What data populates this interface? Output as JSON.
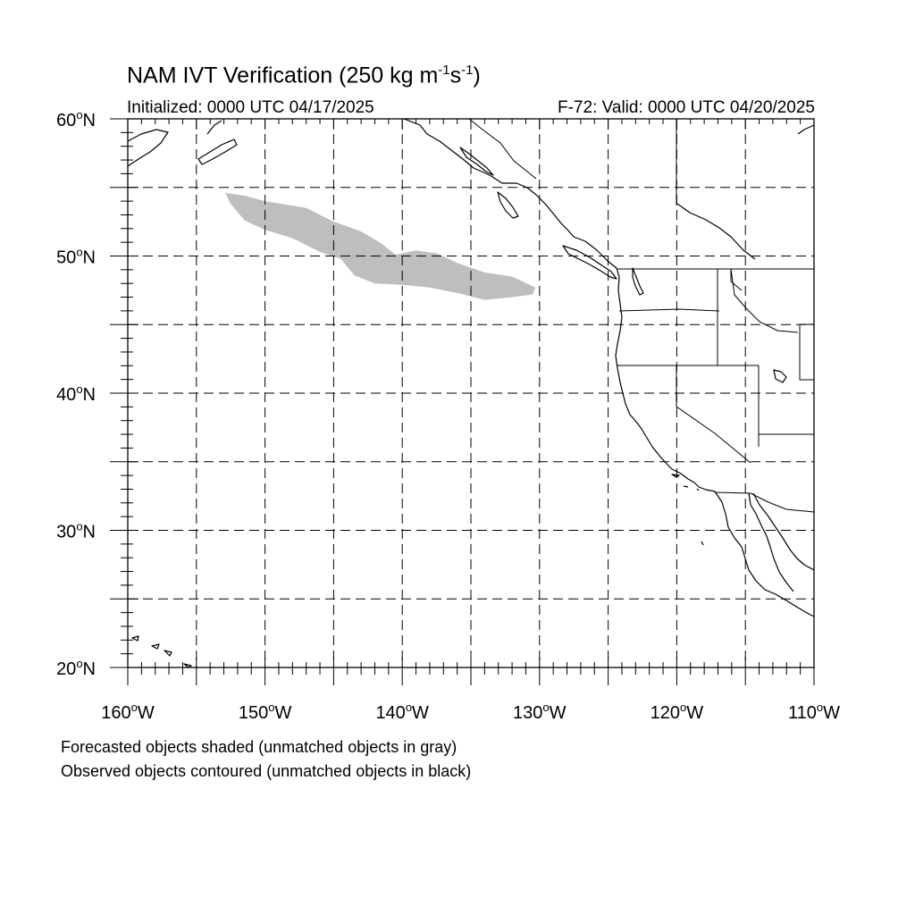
{
  "title": {
    "main": "NAM IVT Verification (250 kg m",
    "exp1": "-1",
    "mid": "s",
    "exp2": "-1",
    "close": ")"
  },
  "subtitle_left": "Initialized: 0000 UTC 04/17/2025",
  "subtitle_right": "F-72: Valid: 0000 UTC 04/20/2025",
  "notes": [
    "Forecasted objects shaded (unmatched objects in gray)",
    "Observed objects contoured (unmatched objects in black)"
  ],
  "map": {
    "lon_range": [
      -160,
      -110
    ],
    "lat_range": [
      20,
      60
    ],
    "lon_labels": [
      {
        "lon": -160,
        "label": "160°W"
      },
      {
        "lon": -150,
        "label": "150°W"
      },
      {
        "lon": -140,
        "label": "140°W"
      },
      {
        "lon": -130,
        "label": "130°W"
      },
      {
        "lon": -120,
        "label": "120°W"
      },
      {
        "lon": -110,
        "label": "110°W"
      }
    ],
    "lat_labels": [
      {
        "lat": 60,
        "label": "60°N"
      },
      {
        "lat": 50,
        "label": "50°N"
      },
      {
        "lat": 40,
        "label": "40°N"
      },
      {
        "lat": 30,
        "label": "30°N"
      },
      {
        "lat": 20,
        "label": "20°N"
      }
    ],
    "gridlines": "dashed every 5°",
    "forecast_object_color": "#bebebe",
    "forecast_objects": [
      {
        "matched": false,
        "outline": [
          [
            -152.9,
            54.6
          ],
          [
            -151.5,
            54.4
          ],
          [
            -150.0,
            54.0
          ],
          [
            -147.0,
            53.5
          ],
          [
            -145.0,
            52.5
          ],
          [
            -143.0,
            51.8
          ],
          [
            -141.5,
            50.9
          ],
          [
            -140.5,
            50.1
          ],
          [
            -139.0,
            50.4
          ],
          [
            -137.5,
            50.2
          ],
          [
            -136.0,
            49.5
          ],
          [
            -134.0,
            48.8
          ],
          [
            -132.0,
            48.5
          ],
          [
            -130.3,
            47.7
          ],
          [
            -130.5,
            47.2
          ],
          [
            -132.0,
            47.0
          ],
          [
            -134.0,
            46.8
          ],
          [
            -136.0,
            47.3
          ],
          [
            -138.0,
            47.7
          ],
          [
            -140.0,
            47.9
          ],
          [
            -142.0,
            48.0
          ],
          [
            -143.5,
            48.6
          ],
          [
            -144.5,
            49.8
          ],
          [
            -146.0,
            50.3
          ],
          [
            -148.0,
            51.3
          ],
          [
            -150.0,
            51.9
          ],
          [
            -151.5,
            52.6
          ],
          [
            -152.5,
            53.8
          ]
        ]
      }
    ],
    "observed_objects": []
  }
}
